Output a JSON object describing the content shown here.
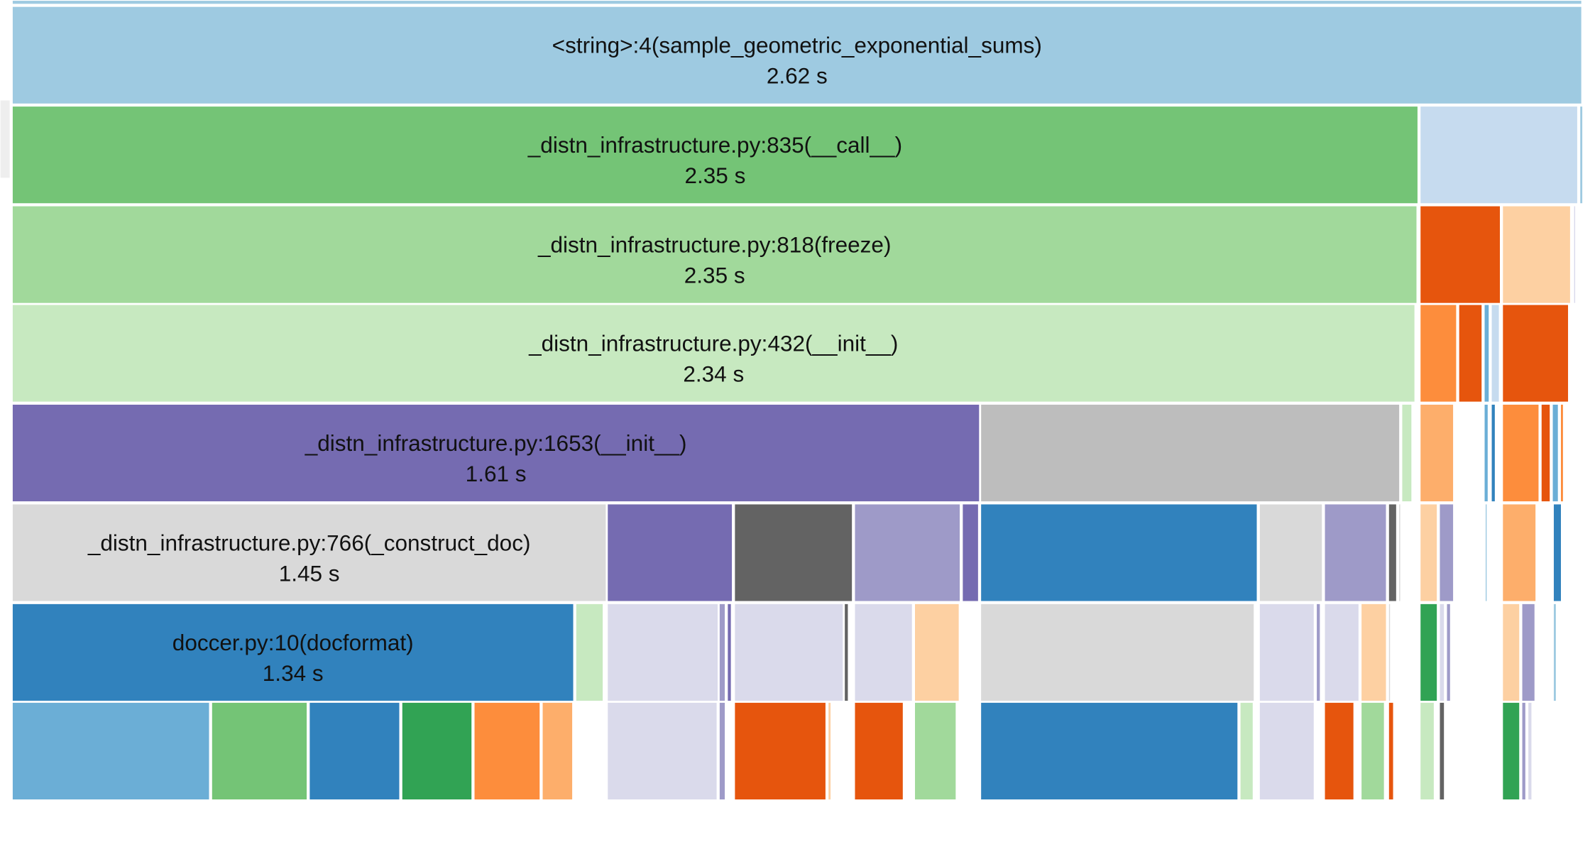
{
  "blocks": [
    {
      "label": "<string>:4(sample_geometric_exponential_sums)",
      "time": "2.62 s"
    },
    {
      "label": "_distn_infrastructure.py:835(__call__)",
      "time": "2.35 s"
    },
    {
      "label": "_distn_infrastructure.py:818(freeze)",
      "time": "2.35 s"
    },
    {
      "label": "_distn_infrastructure.py:432(__init__)",
      "time": "2.34 s"
    },
    {
      "label": "_distn_infrastructure.py:1653(__init__)",
      "time": "1.61 s"
    },
    {
      "label": "_distn_infrastructure.py:766(_construct_doc)",
      "time": "1.45 s"
    },
    {
      "label": "doccer.py:10(docformat)",
      "time": "1.34 s"
    }
  ]
}
